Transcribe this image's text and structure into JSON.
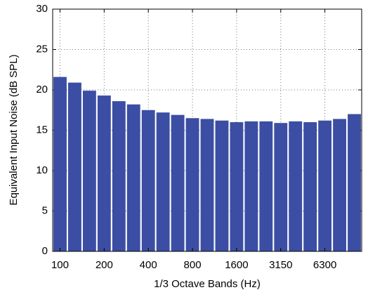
{
  "chart_data": {
    "type": "bar",
    "xlabel": "1/3 Octave Bands (Hz)",
    "ylabel": "Equivalent Input Noise (dB SPL)",
    "categories": [
      "100",
      null,
      null,
      "200",
      null,
      null,
      "400",
      null,
      null,
      "800",
      null,
      null,
      "1600",
      null,
      null,
      "3150",
      null,
      null,
      "6300",
      null,
      null
    ],
    "values": [
      21.6,
      20.9,
      19.9,
      19.3,
      18.6,
      18.2,
      17.5,
      17.2,
      16.9,
      16.5,
      16.4,
      16.2,
      16.0,
      16.1,
      16.1,
      15.9,
      16.1,
      16.0,
      16.2,
      16.4,
      17.0
    ],
    "color": "#3b4ea3",
    "ylim": [
      0,
      30
    ],
    "yticks": [
      0,
      5,
      10,
      15,
      20,
      25,
      30
    ],
    "grid": true
  }
}
